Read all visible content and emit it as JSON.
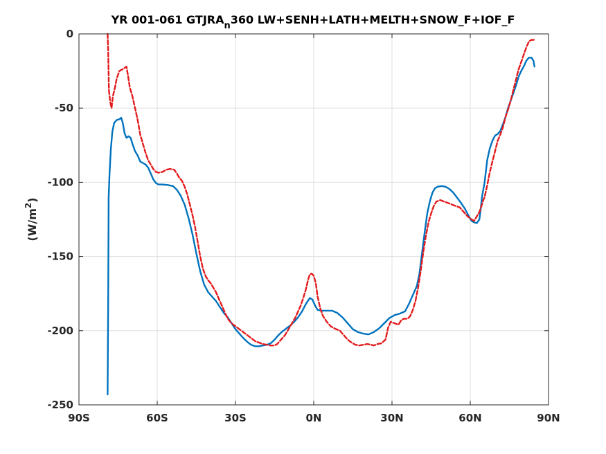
{
  "chart_data": {
    "type": "line",
    "title_main": "YR 001-061 GTJRA",
    "title_sub": "n",
    "title_rest": "360 LW+SENH+LATH+MELTH+SNOW_F+IOF_F",
    "ylabel_main": "(W/m",
    "ylabel_sup": "2",
    "ylabel_end": ")",
    "xlim": [
      -90,
      90
    ],
    "ylim": [
      -250,
      0
    ],
    "xtick_values": [
      -90,
      -60,
      -30,
      0,
      30,
      60,
      90
    ],
    "xtick_labels": [
      "90S",
      "60S",
      "30S",
      "0N",
      "30N",
      "60N",
      "90N"
    ],
    "ytick_values": [
      0,
      -50,
      -100,
      -150,
      -200,
      -250
    ],
    "ytick_labels": [
      "0",
      "-50",
      "-100",
      "-150",
      "-200",
      "-250"
    ],
    "grid": true,
    "colors": {
      "series1": "#0072BD",
      "series2": "#E31A1C"
    },
    "series": [
      {
        "style": "solid",
        "points": [
          [
            -79,
            -243
          ],
          [
            -78.8,
            -180
          ],
          [
            -78.6,
            -110
          ],
          [
            -78.3,
            -95
          ],
          [
            -77.8,
            -78
          ],
          [
            -77.2,
            -66
          ],
          [
            -76.5,
            -60
          ],
          [
            -75.5,
            -58
          ],
          [
            -74.5,
            -57.5
          ],
          [
            -73.8,
            -56.5
          ],
          [
            -73.2,
            -60
          ],
          [
            -72.5,
            -67
          ],
          [
            -71.8,
            -70
          ],
          [
            -71,
            -69
          ],
          [
            -70.2,
            -70
          ],
          [
            -69.5,
            -74
          ],
          [
            -68.5,
            -79
          ],
          [
            -67.5,
            -82
          ],
          [
            -66.5,
            -86
          ],
          [
            -65.5,
            -87
          ],
          [
            -64.5,
            -88
          ],
          [
            -63.5,
            -90
          ],
          [
            -62.5,
            -94
          ],
          [
            -61.5,
            -98
          ],
          [
            -60.5,
            -100.5
          ],
          [
            -59.5,
            -101.5
          ],
          [
            -58,
            -101.5
          ],
          [
            -56,
            -101.8
          ],
          [
            -54,
            -102.5
          ],
          [
            -52.5,
            -105
          ],
          [
            -51,
            -109
          ],
          [
            -49.5,
            -115
          ],
          [
            -48,
            -124
          ],
          [
            -46.5,
            -135
          ],
          [
            -45,
            -148
          ],
          [
            -43.5,
            -160
          ],
          [
            -42,
            -169
          ],
          [
            -40.5,
            -174
          ],
          [
            -39,
            -177
          ],
          [
            -37.5,
            -180
          ],
          [
            -36,
            -184
          ],
          [
            -34.5,
            -188
          ],
          [
            -33,
            -191
          ],
          [
            -31.5,
            -195
          ],
          [
            -30,
            -199
          ],
          [
            -28.5,
            -202
          ],
          [
            -27,
            -205
          ],
          [
            -25.5,
            -207.5
          ],
          [
            -24,
            -209.5
          ],
          [
            -22.5,
            -210.5
          ],
          [
            -21,
            -210.5
          ],
          [
            -19.5,
            -210
          ],
          [
            -18,
            -209.5
          ],
          [
            -16.5,
            -208.5
          ],
          [
            -15,
            -206
          ],
          [
            -13.5,
            -203
          ],
          [
            -12,
            -200.5
          ],
          [
            -10.5,
            -198.5
          ],
          [
            -9,
            -196.5
          ],
          [
            -7.5,
            -194
          ],
          [
            -6,
            -191
          ],
          [
            -4.5,
            -187
          ],
          [
            -3,
            -182
          ],
          [
            -1.5,
            -178
          ],
          [
            -0.5,
            -179
          ],
          [
            0.5,
            -183
          ],
          [
            1.5,
            -186
          ],
          [
            3,
            -186.5
          ],
          [
            5,
            -186.5
          ],
          [
            7,
            -186.5
          ],
          [
            9,
            -188
          ],
          [
            11,
            -191
          ],
          [
            13,
            -195
          ],
          [
            15,
            -199
          ],
          [
            17,
            -201
          ],
          [
            19,
            -202
          ],
          [
            21,
            -202.5
          ],
          [
            23,
            -201
          ],
          [
            25,
            -198.5
          ],
          [
            27,
            -195
          ],
          [
            29,
            -191.5
          ],
          [
            31,
            -189.5
          ],
          [
            33,
            -188.5
          ],
          [
            35,
            -187
          ],
          [
            36.5,
            -182
          ],
          [
            38,
            -176
          ],
          [
            39.5,
            -170
          ],
          [
            40.5,
            -162
          ],
          [
            41.5,
            -148
          ],
          [
            42.5,
            -134
          ],
          [
            43.5,
            -121
          ],
          [
            44.5,
            -113
          ],
          [
            45.5,
            -107
          ],
          [
            46.5,
            -104
          ],
          [
            47.5,
            -103
          ],
          [
            49,
            -102.5
          ],
          [
            50.5,
            -103
          ],
          [
            52,
            -104.5
          ],
          [
            53.5,
            -107
          ],
          [
            55,
            -110.5
          ],
          [
            56.5,
            -114
          ],
          [
            58,
            -118
          ],
          [
            59.5,
            -123
          ],
          [
            60.5,
            -126
          ],
          [
            61.5,
            -127
          ],
          [
            62.5,
            -127.5
          ],
          [
            63.5,
            -125
          ],
          [
            64,
            -118
          ],
          [
            64.5,
            -110
          ],
          [
            65.5,
            -100
          ],
          [
            66.5,
            -85
          ],
          [
            67.5,
            -77
          ],
          [
            68.5,
            -72
          ],
          [
            69.5,
            -68.5
          ],
          [
            70.5,
            -67.5
          ],
          [
            71.5,
            -65.5
          ],
          [
            72.5,
            -61
          ],
          [
            73.5,
            -56
          ],
          [
            74.5,
            -50
          ],
          [
            75.5,
            -45
          ],
          [
            76.5,
            -40
          ],
          [
            77.5,
            -35
          ],
          [
            78.5,
            -29
          ],
          [
            79.5,
            -25
          ],
          [
            80.5,
            -22
          ],
          [
            81.5,
            -18
          ],
          [
            82.5,
            -16
          ],
          [
            83.5,
            -16
          ],
          [
            84.2,
            -18
          ],
          [
            84.6,
            -22
          ]
        ]
      },
      {
        "style": "dashed",
        "points": [
          [
            -79,
            0
          ],
          [
            -78.8,
            -12
          ],
          [
            -78.5,
            -38
          ],
          [
            -78,
            -46
          ],
          [
            -77.5,
            -50
          ],
          [
            -77,
            -42
          ],
          [
            -76.3,
            -37
          ],
          [
            -75.5,
            -30
          ],
          [
            -74.5,
            -25
          ],
          [
            -73.5,
            -24
          ],
          [
            -72.5,
            -23
          ],
          [
            -71.8,
            -22
          ],
          [
            -71.2,
            -28
          ],
          [
            -70.5,
            -36
          ],
          [
            -69.5,
            -42
          ],
          [
            -68.5,
            -50
          ],
          [
            -67.5,
            -58
          ],
          [
            -66.5,
            -68
          ],
          [
            -65.5,
            -74
          ],
          [
            -64.5,
            -80
          ],
          [
            -63.5,
            -85
          ],
          [
            -62.5,
            -88
          ],
          [
            -61.5,
            -91
          ],
          [
            -60.5,
            -93
          ],
          [
            -59.5,
            -93.5
          ],
          [
            -58,
            -93
          ],
          [
            -56.5,
            -91.5
          ],
          [
            -55,
            -91
          ],
          [
            -53.5,
            -91.5
          ],
          [
            -52.5,
            -94
          ],
          [
            -51.5,
            -97
          ],
          [
            -50.5,
            -99
          ],
          [
            -49.5,
            -103
          ],
          [
            -48.5,
            -108
          ],
          [
            -47.5,
            -115
          ],
          [
            -46.5,
            -122
          ],
          [
            -45.5,
            -130
          ],
          [
            -44.5,
            -140
          ],
          [
            -43.5,
            -150
          ],
          [
            -42.5,
            -158
          ],
          [
            -41.5,
            -163
          ],
          [
            -40.5,
            -166
          ],
          [
            -39.5,
            -168
          ],
          [
            -38.5,
            -171
          ],
          [
            -37.5,
            -174
          ],
          [
            -36.5,
            -178
          ],
          [
            -35.5,
            -182
          ],
          [
            -34.5,
            -186
          ],
          [
            -33.5,
            -190
          ],
          [
            -32.5,
            -193
          ],
          [
            -31.5,
            -195
          ],
          [
            -30,
            -197
          ],
          [
            -28.5,
            -199
          ],
          [
            -27,
            -201
          ],
          [
            -25.5,
            -203
          ],
          [
            -24,
            -205
          ],
          [
            -22.5,
            -207
          ],
          [
            -21,
            -208
          ],
          [
            -19.5,
            -209
          ],
          [
            -18,
            -209.5
          ],
          [
            -16.5,
            -210
          ],
          [
            -15,
            -210
          ],
          [
            -14,
            -209
          ],
          [
            -13,
            -207
          ],
          [
            -12,
            -205
          ],
          [
            -11,
            -203
          ],
          [
            -10,
            -200
          ],
          [
            -9,
            -197
          ],
          [
            -8,
            -194
          ],
          [
            -7,
            -191
          ],
          [
            -6,
            -187
          ],
          [
            -5,
            -183
          ],
          [
            -4,
            -178
          ],
          [
            -3,
            -172
          ],
          [
            -2.2,
            -166
          ],
          [
            -1.5,
            -162
          ],
          [
            -0.8,
            -161.5
          ],
          [
            0,
            -163
          ],
          [
            0.8,
            -168
          ],
          [
            1.5,
            -177
          ],
          [
            2.5,
            -185
          ],
          [
            3.5,
            -190
          ],
          [
            5,
            -194
          ],
          [
            6.5,
            -197
          ],
          [
            8,
            -198.5
          ],
          [
            10,
            -200
          ],
          [
            11.5,
            -203
          ],
          [
            13,
            -206
          ],
          [
            14.5,
            -208
          ],
          [
            16,
            -209.5
          ],
          [
            17.5,
            -210
          ],
          [
            19,
            -209.5
          ],
          [
            20.5,
            -209
          ],
          [
            22,
            -209.5
          ],
          [
            23,
            -210
          ],
          [
            24.5,
            -209
          ],
          [
            26,
            -208.5
          ],
          [
            27.5,
            -206
          ],
          [
            28.5,
            -198
          ],
          [
            29.5,
            -194
          ],
          [
            31,
            -195
          ],
          [
            32.5,
            -196
          ],
          [
            33.5,
            -193
          ],
          [
            34.5,
            -192
          ],
          [
            36,
            -192
          ],
          [
            37,
            -190
          ],
          [
            38,
            -186
          ],
          [
            39,
            -180
          ],
          [
            40,
            -171
          ],
          [
            41,
            -160
          ],
          [
            42,
            -147
          ],
          [
            43,
            -136
          ],
          [
            44,
            -127
          ],
          [
            45,
            -121
          ],
          [
            46,
            -116
          ],
          [
            47,
            -113
          ],
          [
            48.5,
            -112
          ],
          [
            50,
            -113
          ],
          [
            51.5,
            -114
          ],
          [
            53,
            -115
          ],
          [
            54.5,
            -116
          ],
          [
            56,
            -117
          ],
          [
            57.5,
            -120
          ],
          [
            59,
            -123
          ],
          [
            60.5,
            -125
          ],
          [
            61.5,
            -126
          ],
          [
            62.5,
            -123
          ],
          [
            63.5,
            -120
          ],
          [
            64.5,
            -115
          ],
          [
            65,
            -112
          ],
          [
            65.5,
            -110
          ],
          [
            66.5,
            -102
          ],
          [
            67.5,
            -93
          ],
          [
            68.5,
            -86
          ],
          [
            69.5,
            -79
          ],
          [
            70.5,
            -72
          ],
          [
            71.5,
            -68
          ],
          [
            72.5,
            -63
          ],
          [
            73.5,
            -56
          ],
          [
            74.5,
            -51
          ],
          [
            75.5,
            -45
          ],
          [
            76.5,
            -38
          ],
          [
            77.5,
            -31
          ],
          [
            78.5,
            -24
          ],
          [
            79.5,
            -19
          ],
          [
            80.5,
            -14
          ],
          [
            81.5,
            -9
          ],
          [
            82.5,
            -5
          ],
          [
            83.5,
            -4
          ],
          [
            84.5,
            -4
          ]
        ]
      }
    ]
  }
}
